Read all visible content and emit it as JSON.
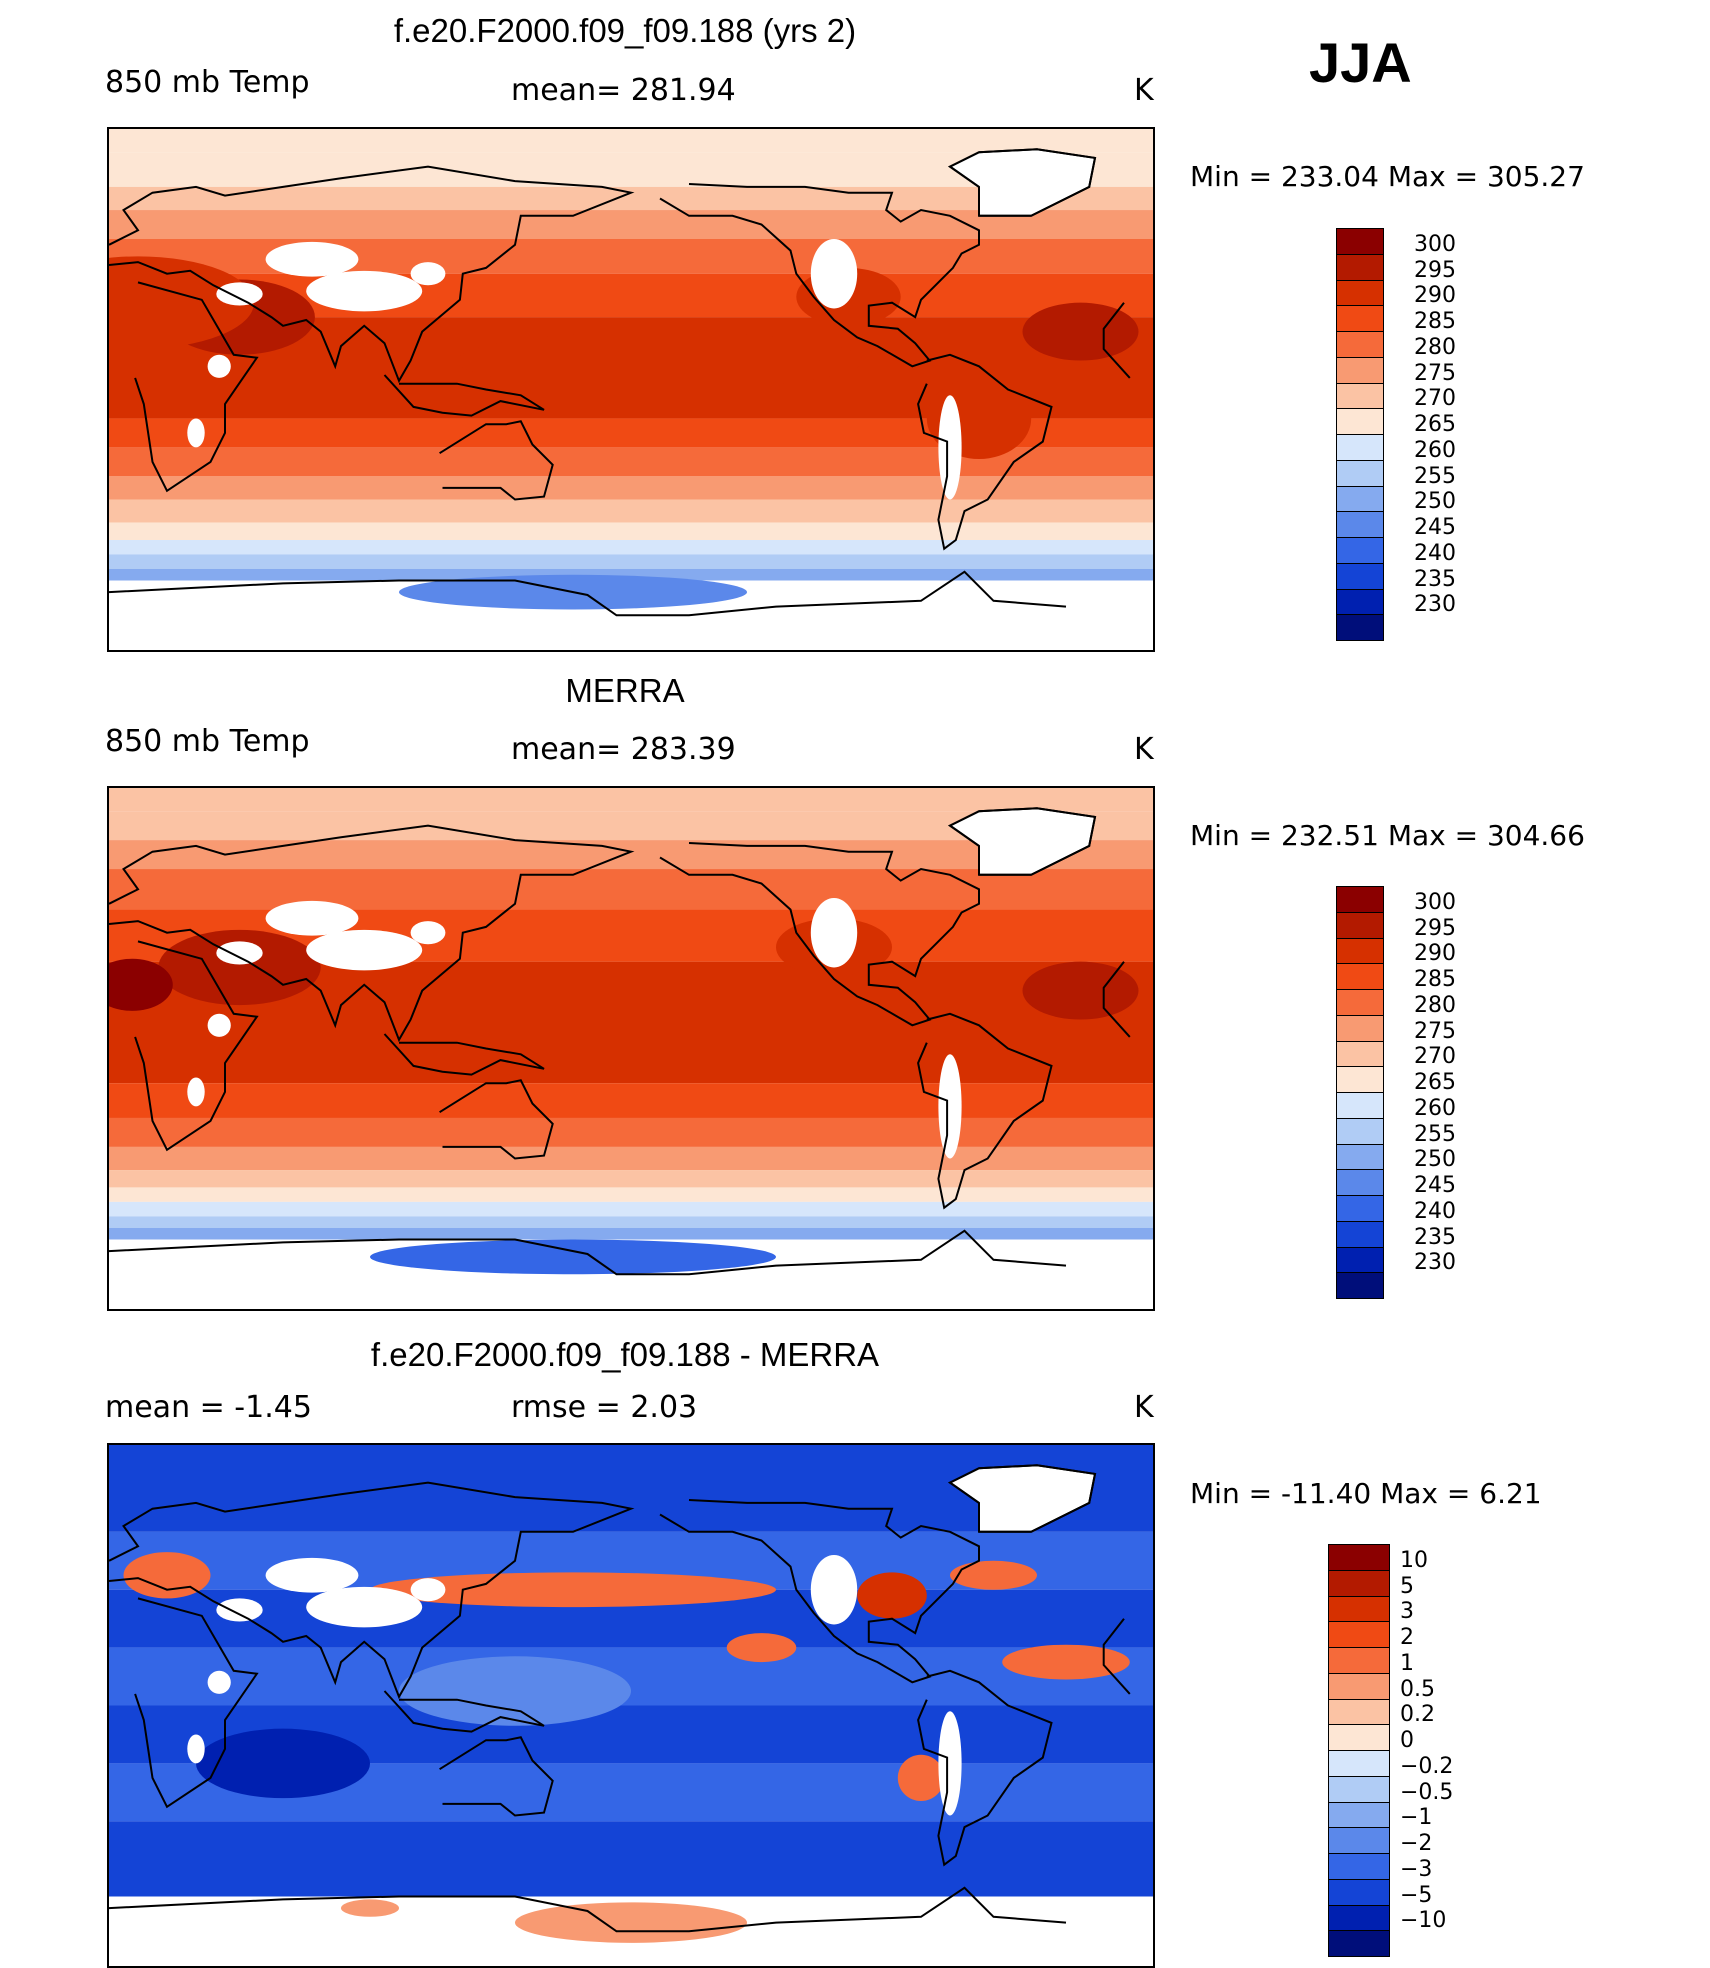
{
  "season": "JJA",
  "panels": [
    {
      "id": "model",
      "title": "f.e20.F2000.f09_f09.188 (yrs 2)",
      "left_label": "850 mb Temp",
      "center_label": "mean= 281.94",
      "units": "K",
      "minmax": "Min = 233.04 Max = 305.27",
      "colorbar": {
        "labels": [
          "300",
          "295",
          "290",
          "285",
          "280",
          "275",
          "270",
          "265",
          "260",
          "255",
          "250",
          "245",
          "240",
          "235",
          "230"
        ],
        "colors": [
          "#8b0000",
          "#b31a00",
          "#d63000",
          "#f04a14",
          "#f56a3a",
          "#f89a72",
          "#fbc3a4",
          "#fde6d4",
          "#d6e6fb",
          "#b0ccf5",
          "#85aaef",
          "#5b88ea",
          "#3466e6",
          "#1444d6",
          "#0020b0",
          "#000e7a"
        ]
      },
      "field": {
        "bands": [
          {
            "lat": 82,
            "color": "#fde6d4"
          },
          {
            "lat": 70,
            "color": "#fbc3a4"
          },
          {
            "lat": 62,
            "color": "#f89a72"
          },
          {
            "lat": 52,
            "color": "#f56a3a"
          },
          {
            "lat": 40,
            "color": "#f04a14"
          },
          {
            "lat": 25,
            "color": "#d63000"
          },
          {
            "lat": -10,
            "color": "#f04a14"
          },
          {
            "lat": -20,
            "color": "#f56a3a"
          },
          {
            "lat": -30,
            "color": "#f89a72"
          },
          {
            "lat": -38,
            "color": "#fbc3a4"
          },
          {
            "lat": -46,
            "color": "#fde6d4"
          },
          {
            "lat": -52,
            "color": "#d6e6fb"
          },
          {
            "lat": -57,
            "color": "#b0ccf5"
          },
          {
            "lat": -62,
            "color": "#85aaef"
          },
          {
            "lat": -66,
            "color": "#ffffff"
          }
        ],
        "blobs": [
          {
            "lon": 45,
            "lat": 25,
            "rx": 26,
            "ry": 13,
            "color": "#b31a00"
          },
          {
            "lon": 10,
            "lat": 30,
            "rx": 40,
            "ry": 16,
            "color": "#d63000"
          },
          {
            "lon": 335,
            "lat": 20,
            "rx": 20,
            "ry": 10,
            "color": "#b31a00"
          },
          {
            "lon": 300,
            "lat": -10,
            "rx": 18,
            "ry": 14,
            "color": "#d63000"
          },
          {
            "lon": 255,
            "lat": 32,
            "rx": 18,
            "ry": 10,
            "color": "#d63000"
          },
          {
            "lon": 190,
            "lat": 10,
            "rx": 70,
            "ry": 10,
            "color": "#d63000"
          },
          {
            "lon": 160,
            "lat": -70,
            "rx": 60,
            "ry": 6,
            "color": "#5b88ea"
          }
        ]
      }
    },
    {
      "id": "obs",
      "title": "MERRA",
      "left_label": "850 mb Temp",
      "center_label": "mean= 283.39",
      "units": "K",
      "minmax": "Min = 232.51 Max = 304.66",
      "colorbar": {
        "labels": [
          "300",
          "295",
          "290",
          "285",
          "280",
          "275",
          "270",
          "265",
          "260",
          "255",
          "250",
          "245",
          "240",
          "235",
          "230"
        ],
        "colors": [
          "#8b0000",
          "#b31a00",
          "#d63000",
          "#f04a14",
          "#f56a3a",
          "#f89a72",
          "#fbc3a4",
          "#fde6d4",
          "#d6e6fb",
          "#b0ccf5",
          "#85aaef",
          "#5b88ea",
          "#3466e6",
          "#1444d6",
          "#0020b0",
          "#000e7a"
        ]
      },
      "field": {
        "bands": [
          {
            "lat": 82,
            "color": "#fbc3a4"
          },
          {
            "lat": 72,
            "color": "#f89a72"
          },
          {
            "lat": 62,
            "color": "#f56a3a"
          },
          {
            "lat": 48,
            "color": "#f04a14"
          },
          {
            "lat": 30,
            "color": "#d63000"
          },
          {
            "lat": -12,
            "color": "#f04a14"
          },
          {
            "lat": -24,
            "color": "#f56a3a"
          },
          {
            "lat": -34,
            "color": "#f89a72"
          },
          {
            "lat": -42,
            "color": "#fbc3a4"
          },
          {
            "lat": -48,
            "color": "#fde6d4"
          },
          {
            "lat": -53,
            "color": "#d6e6fb"
          },
          {
            "lat": -58,
            "color": "#b0ccf5"
          },
          {
            "lat": -62,
            "color": "#85aaef"
          },
          {
            "lat": -66,
            "color": "#ffffff"
          }
        ],
        "blobs": [
          {
            "lon": 45,
            "lat": 28,
            "rx": 28,
            "ry": 13,
            "color": "#b31a00"
          },
          {
            "lon": 8,
            "lat": 22,
            "rx": 14,
            "ry": 9,
            "color": "#8b0000"
          },
          {
            "lon": 335,
            "lat": 20,
            "rx": 20,
            "ry": 10,
            "color": "#b31a00"
          },
          {
            "lon": 250,
            "lat": 35,
            "rx": 20,
            "ry": 10,
            "color": "#d63000"
          },
          {
            "lon": 160,
            "lat": -72,
            "rx": 70,
            "ry": 6,
            "color": "#3466e6"
          }
        ]
      }
    },
    {
      "id": "diff",
      "title": "f.e20.F2000.f09_f09.188 - MERRA",
      "left_label": "mean = -1.45",
      "center_label": "rmse = 2.03",
      "units": "K",
      "minmax": "Min = -11.40 Max = 6.21",
      "colorbar": {
        "labels": [
          "10",
          "5",
          "3",
          "2",
          "1",
          "0.5",
          "0.2",
          "0",
          "-0.2",
          "-0.5",
          "-1",
          "-2",
          "-3",
          "-5",
          "-10"
        ],
        "colors": [
          "#8b0000",
          "#b31a00",
          "#d63000",
          "#f04a14",
          "#f56a3a",
          "#f89a72",
          "#fbc3a4",
          "#fde6d4",
          "#d6e6fb",
          "#b0ccf5",
          "#85aaef",
          "#5b88ea",
          "#3466e6",
          "#1444d6",
          "#0020b0",
          "#000e7a"
        ]
      },
      "field": {
        "bands": [
          {
            "lat": 90,
            "color": "#1444d6"
          },
          {
            "lat": 60,
            "color": "#3466e6"
          },
          {
            "lat": 40,
            "color": "#1444d6"
          },
          {
            "lat": 20,
            "color": "#3466e6"
          },
          {
            "lat": 0,
            "color": "#1444d6"
          },
          {
            "lat": -20,
            "color": "#3466e6"
          },
          {
            "lat": -40,
            "color": "#1444d6"
          },
          {
            "lat": -66,
            "color": "#ffffff"
          }
        ],
        "blobs": [
          {
            "lon": 160,
            "lat": 40,
            "rx": 70,
            "ry": 6,
            "color": "#f56a3a"
          },
          {
            "lon": 270,
            "lat": 38,
            "rx": 12,
            "ry": 8,
            "color": "#d63000"
          },
          {
            "lon": 20,
            "lat": 45,
            "rx": 15,
            "ry": 8,
            "color": "#f56a3a"
          },
          {
            "lon": 330,
            "lat": 15,
            "rx": 22,
            "ry": 6,
            "color": "#f56a3a"
          },
          {
            "lon": 305,
            "lat": 45,
            "rx": 15,
            "ry": 5,
            "color": "#f56a3a"
          },
          {
            "lon": 225,
            "lat": 20,
            "rx": 12,
            "ry": 5,
            "color": "#f56a3a"
          },
          {
            "lon": 280,
            "lat": -25,
            "rx": 8,
            "ry": 8,
            "color": "#f56a3a"
          },
          {
            "lon": 180,
            "lat": -75,
            "rx": 40,
            "ry": 7,
            "color": "#f89a72"
          },
          {
            "lon": 90,
            "lat": -70,
            "rx": 10,
            "ry": 3,
            "color": "#f89a72"
          },
          {
            "lon": 140,
            "lat": 5,
            "rx": 40,
            "ry": 12,
            "color": "#5b88ea"
          },
          {
            "lon": 60,
            "lat": -20,
            "rx": 30,
            "ry": 12,
            "color": "#0020b0"
          }
        ]
      }
    }
  ]
}
